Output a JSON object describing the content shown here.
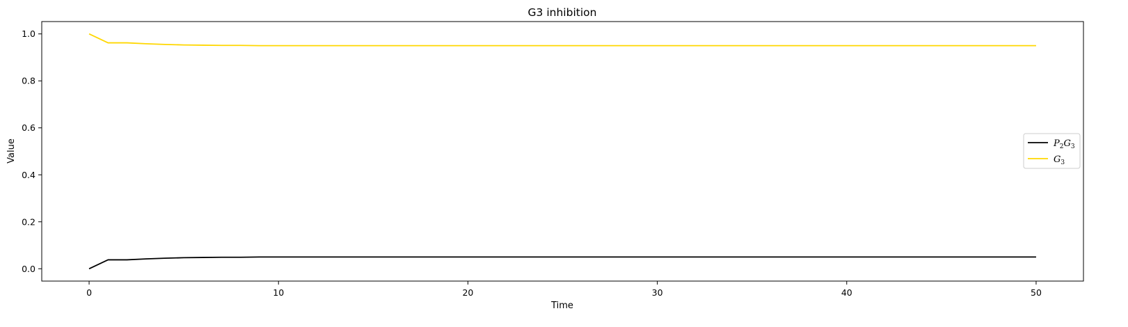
{
  "chart_data": {
    "type": "line",
    "title": "G3 inhibition",
    "xlabel": "Time",
    "ylabel": "Value",
    "xlim": [
      -2.5,
      52.5
    ],
    "ylim": [
      -0.0525,
      1.0525
    ],
    "xticks": [
      0,
      10,
      20,
      30,
      40,
      50
    ],
    "xtick_labels": [
      "0",
      "10",
      "20",
      "30",
      "40",
      "50"
    ],
    "yticks": [
      0.0,
      0.2,
      0.4,
      0.6,
      0.8,
      1.0
    ],
    "ytick_labels": [
      "0.0",
      "0.2",
      "0.4",
      "0.6",
      "0.8",
      "1.0"
    ],
    "grid": false,
    "legend_position": "center-right",
    "x": [
      0,
      1,
      2,
      3,
      4,
      5,
      6,
      7,
      8,
      9,
      10,
      11,
      12,
      13,
      14,
      15,
      16,
      17,
      18,
      19,
      20,
      21,
      22,
      23,
      24,
      25,
      26,
      27,
      28,
      29,
      30,
      31,
      32,
      33,
      34,
      35,
      36,
      37,
      38,
      39,
      40,
      41,
      42,
      43,
      44,
      45,
      46,
      47,
      48,
      49,
      50
    ],
    "series": [
      {
        "name": "P2G3",
        "label_main_1": "P",
        "label_sub_1": "2",
        "label_main_2": "G",
        "label_sub_2": "3",
        "color": "#000000",
        "values": [
          0.0,
          0.038,
          0.038,
          0.042,
          0.045,
          0.047,
          0.048,
          0.049,
          0.049,
          0.05,
          0.05,
          0.05,
          0.05,
          0.05,
          0.05,
          0.05,
          0.05,
          0.05,
          0.05,
          0.05,
          0.05,
          0.05,
          0.05,
          0.05,
          0.05,
          0.05,
          0.05,
          0.05,
          0.05,
          0.05,
          0.05,
          0.05,
          0.05,
          0.05,
          0.05,
          0.05,
          0.05,
          0.05,
          0.05,
          0.05,
          0.05,
          0.05,
          0.05,
          0.05,
          0.05,
          0.05,
          0.05,
          0.05,
          0.05,
          0.05,
          0.05
        ]
      },
      {
        "name": "G3",
        "label_main_1": "G",
        "label_sub_1": "3",
        "label_main_2": "",
        "label_sub_2": "",
        "color": "#ffd700",
        "values": [
          1.0,
          0.962,
          0.962,
          0.958,
          0.955,
          0.953,
          0.952,
          0.951,
          0.951,
          0.95,
          0.95,
          0.95,
          0.95,
          0.95,
          0.95,
          0.95,
          0.95,
          0.95,
          0.95,
          0.95,
          0.95,
          0.95,
          0.95,
          0.95,
          0.95,
          0.95,
          0.95,
          0.95,
          0.95,
          0.95,
          0.95,
          0.95,
          0.95,
          0.95,
          0.95,
          0.95,
          0.95,
          0.95,
          0.95,
          0.95,
          0.95,
          0.95,
          0.95,
          0.95,
          0.95,
          0.95,
          0.95,
          0.95,
          0.95,
          0.95,
          0.95
        ]
      }
    ]
  }
}
